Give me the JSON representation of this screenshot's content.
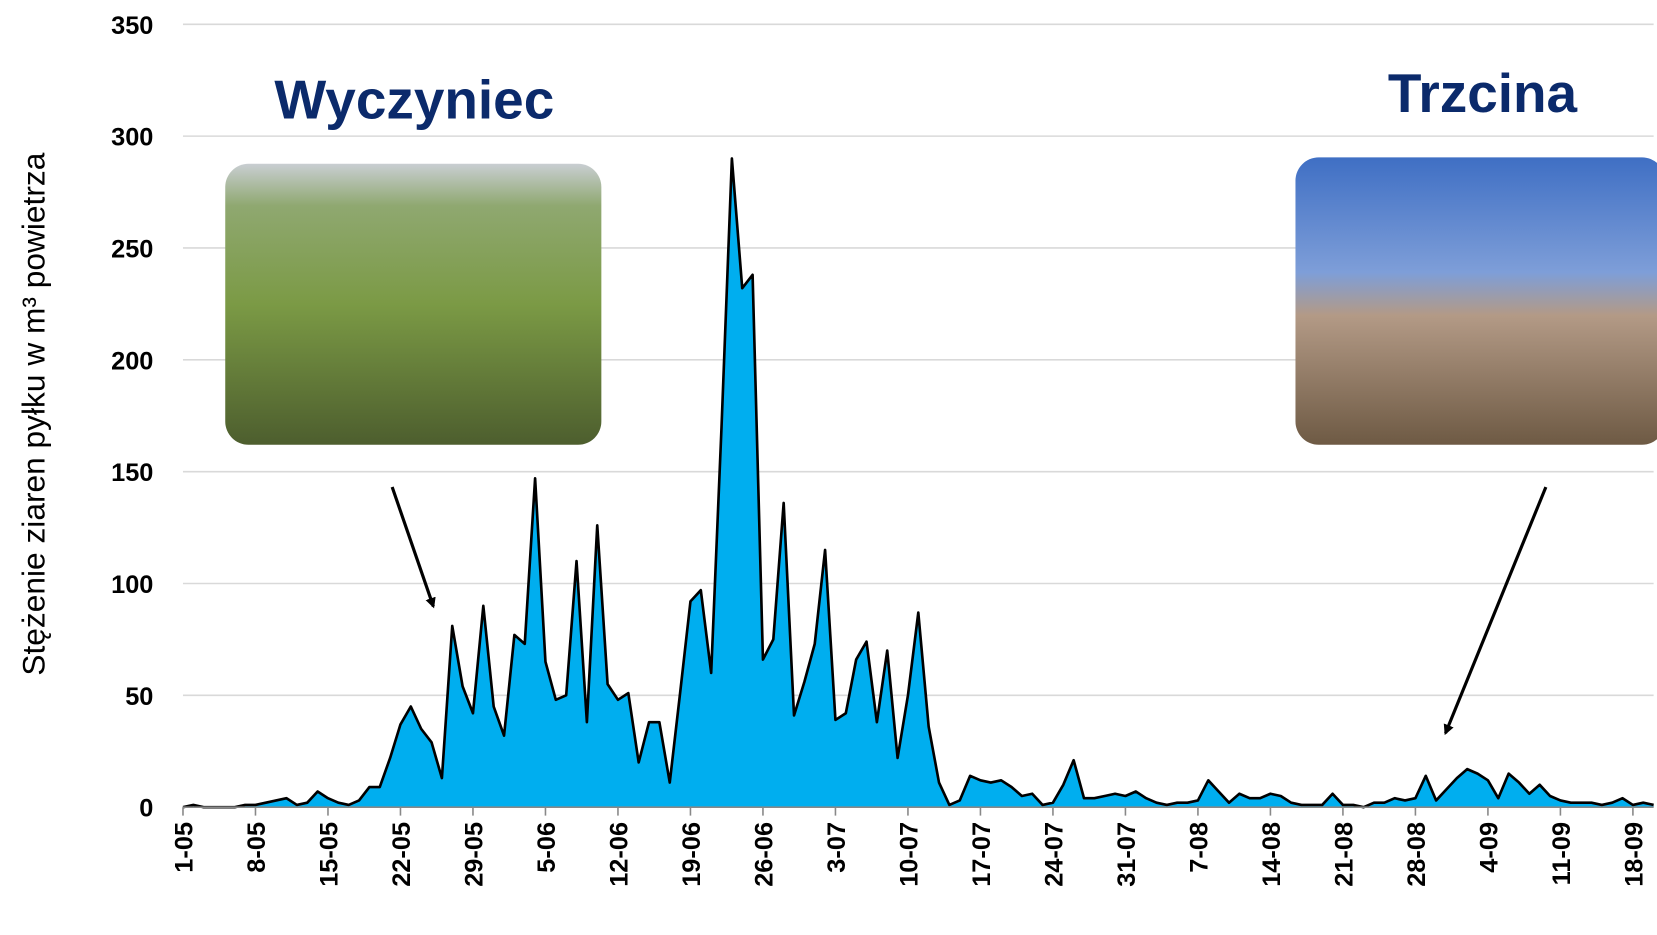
{
  "chart_data": {
    "type": "area",
    "y_label": "Stężenie ziaren pyłku w m³ powietrza",
    "annotations": [
      "Wyczyniec",
      "Trzcina"
    ],
    "categories": [
      "1-05",
      null,
      null,
      null,
      null,
      null,
      null,
      "8-05",
      null,
      null,
      null,
      null,
      null,
      null,
      "15-05",
      null,
      null,
      null,
      null,
      null,
      null,
      "22-05",
      null,
      null,
      null,
      null,
      null,
      null,
      "29-05",
      null,
      null,
      null,
      null,
      null,
      null,
      "5-06",
      null,
      null,
      null,
      null,
      null,
      null,
      "12-06",
      null,
      null,
      null,
      null,
      null,
      null,
      "19-06",
      null,
      null,
      null,
      null,
      null,
      null,
      "26-06",
      null,
      null,
      null,
      null,
      null,
      null,
      "3-07",
      null,
      null,
      null,
      null,
      null,
      null,
      "10-07",
      null,
      null,
      null,
      null,
      null,
      null,
      "17-07",
      null,
      null,
      null,
      null,
      null,
      null,
      "24-07",
      null,
      null,
      null,
      null,
      null,
      null,
      "31-07",
      null,
      null,
      null,
      null,
      null,
      null,
      "7-08",
      null,
      null,
      null,
      null,
      null,
      null,
      "14-08",
      null,
      null,
      null,
      null,
      null,
      null,
      "21-08",
      null,
      null,
      null,
      null,
      null,
      null,
      "28-08",
      null,
      null,
      null,
      null,
      null,
      null,
      "4-09",
      null,
      null,
      null,
      null,
      null,
      null,
      "11-09",
      null,
      null,
      null,
      null,
      null,
      null,
      "18-09",
      null,
      null
    ],
    "values": [
      0,
      1,
      0,
      0,
      0,
      0,
      1,
      1,
      2,
      3,
      4,
      1,
      2,
      7,
      4,
      2,
      1,
      3,
      9,
      9,
      22,
      37,
      45,
      35,
      29,
      13,
      81,
      54,
      42,
      90,
      45,
      32,
      77,
      73,
      147,
      65,
      48,
      50,
      110,
      38,
      126,
      55,
      48,
      51,
      20,
      38,
      38,
      11,
      51,
      92,
      97,
      60,
      170,
      290,
      232,
      238,
      66,
      75,
      136,
      41,
      56,
      73,
      115,
      39,
      42,
      66,
      74,
      38,
      70,
      22,
      50,
      87,
      36,
      11,
      1,
      3,
      14,
      12,
      11,
      12,
      9,
      5,
      6,
      1,
      2,
      10,
      21,
      4,
      4,
      5,
      6,
      5,
      7,
      4,
      2,
      1,
      2,
      2,
      3,
      12,
      7,
      2,
      6,
      4,
      4,
      6,
      5,
      2,
      1,
      1,
      1,
      6,
      1,
      1,
      0,
      2,
      2,
      4,
      3,
      4,
      14,
      3,
      8,
      13,
      17,
      15,
      12,
      4,
      15,
      11,
      6,
      10,
      5,
      3,
      2,
      2,
      2,
      1,
      2,
      4,
      1,
      2,
      1
    ],
    "color": "#00aeef",
    "ylim": [
      0,
      350
    ],
    "yticks": [
      0,
      50,
      100,
      150,
      200,
      250,
      300,
      350
    ],
    "grid": true
  }
}
